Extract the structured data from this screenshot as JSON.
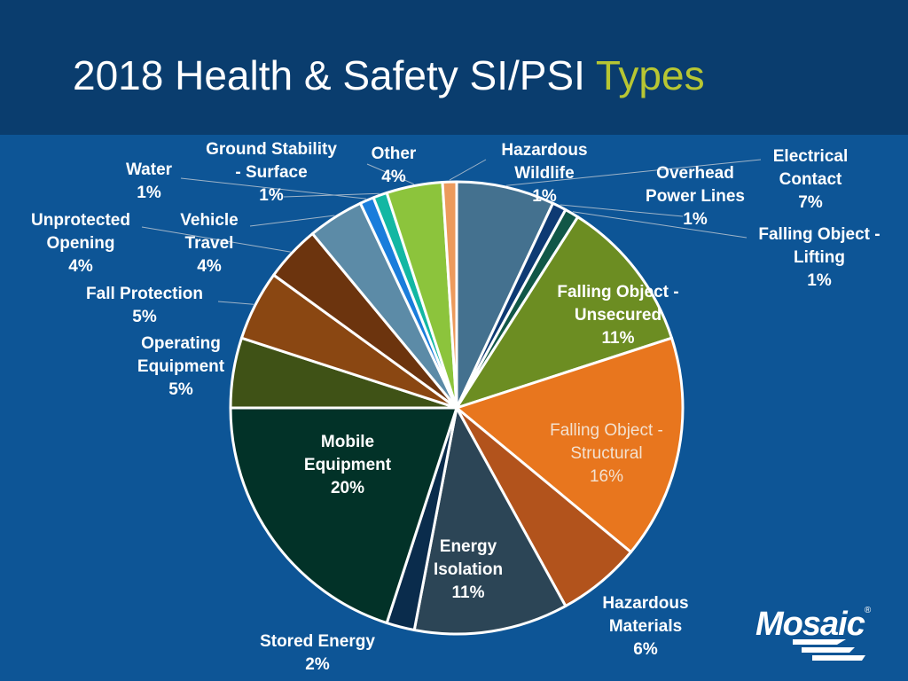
{
  "title": {
    "main": "2018 Health & Safety SI/PSI",
    "accent": "Types"
  },
  "logo": {
    "text": "Mosaic",
    "registered": "®"
  },
  "chart_data": {
    "type": "pie",
    "title": "2018 Health & Safety SI/PSI Types",
    "slices": [
      {
        "label": [
          "Electrical",
          "Contact"
        ],
        "value": 7,
        "pct": "7%",
        "color": "#44718f"
      },
      {
        "label": [
          "Overhead",
          "Power Lines"
        ],
        "value": 1,
        "pct": "1%",
        "color": "#0e3a73"
      },
      {
        "label": [
          "Falling Object -",
          "Lifting"
        ],
        "value": 1,
        "pct": "1%",
        "color": "#115747"
      },
      {
        "label": [
          "Falling Object -",
          "Unsecured"
        ],
        "value": 11,
        "pct": "11%",
        "color": "#6c8d22"
      },
      {
        "label": [
          "Falling Object -",
          "Structural"
        ],
        "value": 16,
        "pct": "16%",
        "color": "#e8761e"
      },
      {
        "label": [
          "Hazardous",
          "Materials"
        ],
        "value": 6,
        "pct": "6%",
        "color": "#b2531c"
      },
      {
        "label": [
          "Energy",
          "Isolation"
        ],
        "value": 11,
        "pct": "11%",
        "color": "#2c4556"
      },
      {
        "label": [
          "Stored Energy"
        ],
        "value": 2,
        "pct": "2%",
        "color": "#0a2c4c"
      },
      {
        "label": [
          "Mobile",
          "Equipment"
        ],
        "value": 20,
        "pct": "20%",
        "color": "#023228"
      },
      {
        "label": [
          "Operating",
          "Equipment"
        ],
        "value": 5,
        "pct": "5%",
        "color": "#3f5216"
      },
      {
        "label": [
          "Fall Protection"
        ],
        "value": 5,
        "pct": "5%",
        "color": "#8a4712"
      },
      {
        "label": [
          "Unprotected",
          "Opening"
        ],
        "value": 4,
        "pct": "4%",
        "color": "#6c340e"
      },
      {
        "label": [
          "Vehicle",
          "Travel"
        ],
        "value": 4,
        "pct": "4%",
        "color": "#5c8ba7"
      },
      {
        "label": [
          "Water"
        ],
        "value": 1,
        "pct": "1%",
        "color": "#1a7ddb"
      },
      {
        "label": [
          "Ground Stability",
          "- Surface"
        ],
        "value": 1,
        "pct": "1%",
        "color": "#13b7a3"
      },
      {
        "label": [
          "Other"
        ],
        "value": 4,
        "pct": "4%",
        "color": "#8cc43c"
      },
      {
        "label": [
          "Hazardous",
          "Wildlife"
        ],
        "value": 1,
        "pct": "1%",
        "color": "#ec9a5c"
      }
    ]
  }
}
